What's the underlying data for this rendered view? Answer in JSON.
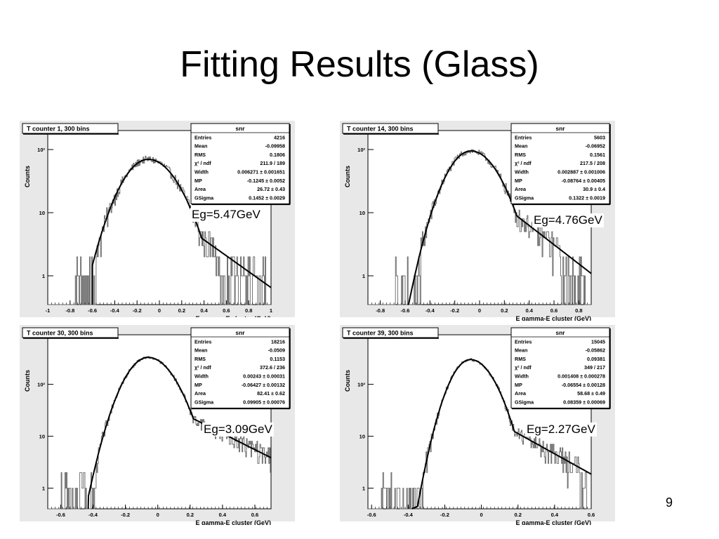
{
  "slide": {
    "title": "Fitting Results (Glass)",
    "page_number": "9"
  },
  "chart_data": [
    {
      "type": "histogram-with-fit",
      "title": "T counter 1, 300 bins",
      "xlabel": "E gamma-E cluster (GeV)",
      "ylabel": "Counts",
      "xlim": [
        -1,
        1
      ],
      "ylog": true,
      "ylim": [
        0.35,
        200
      ],
      "xticks": [
        "-1",
        "-0.8",
        "-0.6",
        "-0.4",
        "-0.2",
        "0",
        "0.2",
        "0.4",
        "0.6",
        "0.8",
        "1"
      ],
      "xtick_values": [
        -1,
        -0.8,
        -0.6,
        -0.4,
        -0.2,
        0,
        0.2,
        0.4,
        0.6,
        0.8,
        1
      ],
      "yticks": [
        "1",
        "10",
        "10²"
      ],
      "ytick_values": [
        1,
        10,
        100
      ],
      "annotation": "Eg=5.47GeV",
      "stats": {
        "header": "snr",
        "rows": [
          {
            "label": "Entries",
            "value": "4216"
          },
          {
            "label": "Mean",
            "value": "-0.09958"
          },
          {
            "label": "RMS",
            "value": "0.1806"
          },
          {
            "label": "χ² / ndf",
            "value": "211.9 / 189"
          },
          {
            "label": "Width",
            "value": "0.006271 ± 0.001651"
          },
          {
            "label": "MP",
            "value": "-0.1245 ± 0.0052"
          },
          {
            "label": "Area",
            "value": "26.72 ± 0.43"
          },
          {
            "label": "GSigma",
            "value": "0.1452 ± 0.0029"
          }
        ]
      },
      "fit": {
        "peak_x": -0.1,
        "peak_y": 70,
        "sigma_left": 0.18,
        "sigma_right": 0.2,
        "tail_start": 0.38,
        "tail_decay": 2.9,
        "cutoff_x": -0.6
      },
      "data_range": [
        -0.75,
        0.97
      ]
    },
    {
      "type": "histogram-with-fit",
      "title": "T counter 14, 300 bins",
      "xlabel": "E gamma-E cluster (GeV)",
      "ylabel": "Counts",
      "xlim": [
        -0.9,
        0.9
      ],
      "ylog": true,
      "ylim": [
        0.35,
        200
      ],
      "xticks": [
        "-0.8",
        "-0.6",
        "-0.4",
        "-0.2",
        "0",
        "0.2",
        "0.4",
        "0.6",
        "0.8"
      ],
      "xtick_values": [
        -0.8,
        -0.6,
        -0.4,
        -0.2,
        0,
        0.2,
        0.4,
        0.6,
        0.8
      ],
      "yticks": [
        "1",
        "10",
        "10²"
      ],
      "ytick_values": [
        1,
        10,
        100
      ],
      "annotation": "Eg=4.76GeV",
      "stats": {
        "header": "snr",
        "rows": [
          {
            "label": "Entries",
            "value": "5603"
          },
          {
            "label": "Mean",
            "value": "-0.06952"
          },
          {
            "label": "RMS",
            "value": "0.1561"
          },
          {
            "label": "χ² / ndf",
            "value": "217.5 / 208"
          },
          {
            "label": "Width",
            "value": "0.002887 ± 0.001006"
          },
          {
            "label": "MP",
            "value": "-0.08764 ± 0.00405"
          },
          {
            "label": "Area",
            "value": "30.9 ± 0.4"
          },
          {
            "label": "GSigma",
            "value": "0.1322 ± 0.0019"
          }
        ]
      },
      "fit": {
        "peak_x": -0.07,
        "peak_y": 95,
        "sigma_left": 0.15,
        "sigma_right": 0.17,
        "tail_start": 0.3,
        "tail_decay": 3.5,
        "cutoff_x": -0.58
      },
      "data_range": [
        -0.68,
        0.85
      ]
    },
    {
      "type": "histogram-with-fit",
      "title": "T counter 30, 300 bins",
      "xlabel": "E gamma-E cluster (GeV)",
      "ylabel": "Counts",
      "xlim": [
        -0.68,
        0.7
      ],
      "ylog": true,
      "ylim": [
        0.4,
        900
      ],
      "xticks": [
        "-0.6",
        "-0.4",
        "-0.2",
        "0",
        "0.2",
        "0.4",
        "0.6"
      ],
      "xtick_values": [
        -0.6,
        -0.4,
        -0.2,
        0,
        0.2,
        0.4,
        0.6
      ],
      "yticks": [
        "1",
        "10",
        "10²"
      ],
      "ytick_values": [
        1,
        10,
        100
      ],
      "annotation": "Eg=3.09GeV",
      "stats": {
        "header": "snr",
        "rows": [
          {
            "label": "Entries",
            "value": "18216"
          },
          {
            "label": "Mean",
            "value": "-0.0509"
          },
          {
            "label": "RMS",
            "value": "0.1153"
          },
          {
            "label": "χ² / ndf",
            "value": "372.6 / 236"
          },
          {
            "label": "Width",
            "value": "0.00243 ± 0.00031"
          },
          {
            "label": "MP",
            "value": "-0.06427 ± 0.00132"
          },
          {
            "label": "Area",
            "value": "82.41 ± 0.62"
          },
          {
            "label": "GSigma",
            "value": "0.09905 ± 0.00076"
          }
        ]
      },
      "fit": {
        "peak_x": -0.06,
        "peak_y": 330,
        "sigma_left": 0.105,
        "sigma_right": 0.12,
        "tail_start": 0.22,
        "tail_decay": 3.6,
        "cutoff_x": -0.43
      },
      "data_range": [
        -0.6,
        0.7
      ]
    },
    {
      "type": "histogram-with-fit",
      "title": "T counter 39, 300 bins",
      "xlabel": "E gamma-E cluster (GeV)",
      "ylabel": "Counts",
      "xlim": [
        -0.62,
        0.6
      ],
      "ylog": true,
      "ylim": [
        0.4,
        900
      ],
      "xticks": [
        "-0.6",
        "-0.4",
        "-0.2",
        "0",
        "0.2",
        "0.4",
        "0.6"
      ],
      "xtick_values": [
        -0.6,
        -0.4,
        -0.2,
        0,
        0.2,
        0.4,
        0.6
      ],
      "yticks": [
        "1",
        "10",
        "10²"
      ],
      "ytick_values": [
        1,
        10,
        100
      ],
      "annotation": "Eg=2.27GeV",
      "stats": {
        "header": "snr",
        "rows": [
          {
            "label": "Entries",
            "value": "15045"
          },
          {
            "label": "Mean",
            "value": "-0.05862"
          },
          {
            "label": "RMS",
            "value": "0.09381"
          },
          {
            "label": "χ² / ndf",
            "value": "349 / 217"
          },
          {
            "label": "Width",
            "value": "0.001408 ± 0.000278"
          },
          {
            "label": "MP",
            "value": "-0.06554 ± 0.00128"
          },
          {
            "label": "Area",
            "value": "58.68 ± 0.49"
          },
          {
            "label": "GSigma",
            "value": "0.08359 ± 0.00069"
          }
        ]
      },
      "fit": {
        "peak_x": -0.06,
        "peak_y": 300,
        "sigma_left": 0.08,
        "sigma_right": 0.095,
        "tail_start": 0.18,
        "tail_decay": 4.5,
        "cutoff_x": -0.38
      },
      "data_range": [
        -0.55,
        0.58
      ]
    }
  ]
}
